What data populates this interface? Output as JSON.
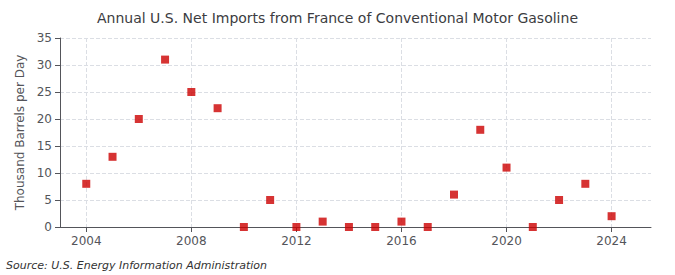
{
  "chart_data": {
    "type": "scatter",
    "title": "Annual U.S. Net Imports from France of Conventional Motor Gasoline",
    "ylabel": "Thousand Barrels per Day",
    "annotation": "Source: U.S. Energy Information Administration",
    "x": [
      2004,
      2005,
      2006,
      2007,
      2008,
      2009,
      2010,
      2011,
      2012,
      2013,
      2014,
      2015,
      2016,
      2017,
      2018,
      2019,
      2020,
      2021,
      2022,
      2023,
      2024
    ],
    "values": [
      8,
      13,
      20,
      31,
      25,
      22,
      0,
      5,
      0,
      1,
      0,
      0,
      1,
      0,
      6,
      18,
      11,
      0,
      5,
      8,
      2
    ],
    "color": "#cc0000",
    "marker": "square",
    "xlim": [
      2003.0,
      2025.5
    ],
    "xticks": [
      2004,
      2008,
      2012,
      2016,
      2020,
      2024
    ],
    "ylim": [
      0,
      35
    ],
    "yticks": [
      0,
      5,
      10,
      15,
      20,
      25,
      30,
      35
    ],
    "grid": true
  }
}
